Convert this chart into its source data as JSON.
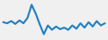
{
  "values": [
    4,
    3.5,
    4.5,
    3.2,
    4.8,
    3.5,
    6.0,
    12.0,
    8.0,
    3.0,
    -1.5,
    2.5,
    0.5,
    2.0,
    0.8,
    1.5,
    0.5,
    2.5,
    1.0,
    3.5,
    1.5,
    4.0,
    2.0,
    4.5,
    2.5,
    3.5
  ],
  "line_color": "#2080c0",
  "line_width": 1.5,
  "background_color": "#f0f0f0",
  "ylim": [
    -4,
    14
  ]
}
